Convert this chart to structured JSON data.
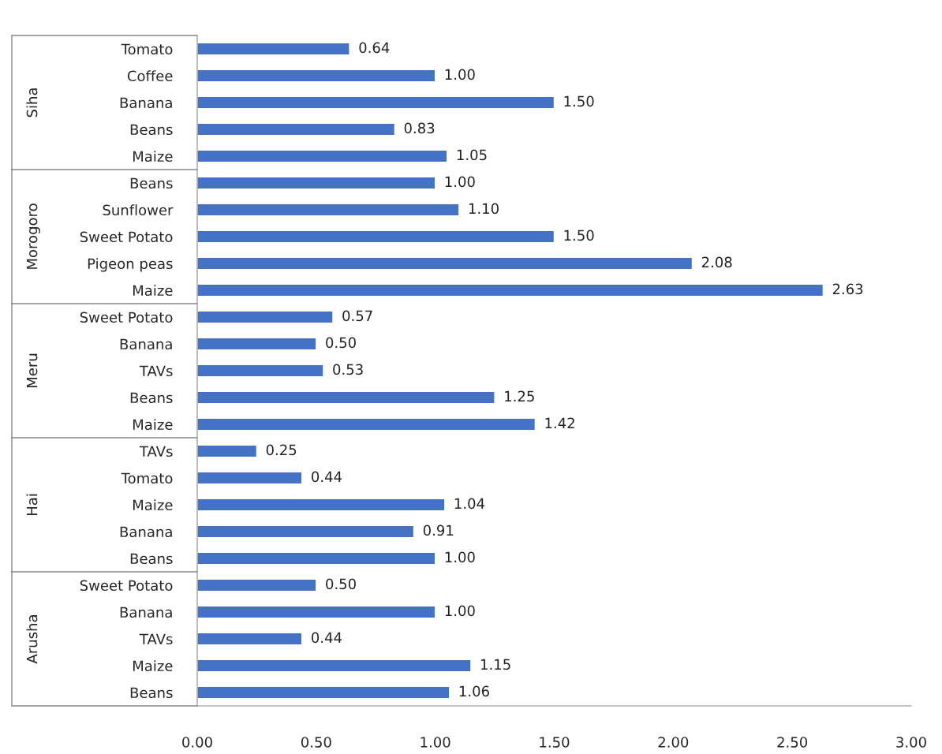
{
  "chart_data": {
    "type": "bar",
    "orientation": "horizontal",
    "categories": [
      "Tomato",
      "Coffee",
      "Banana",
      "Beans",
      "Maize",
      "Beans",
      "Sunflower",
      "Sweet Potato",
      "Pigeon peas",
      "Maize",
      "Sweet Potato",
      "Banana",
      "TAVs",
      "Beans",
      "Maize",
      "TAVs",
      "Tomato",
      "Maize",
      "Banana",
      "Beans",
      "Sweet Potato",
      "Banana",
      "TAVs",
      "Maize",
      "Beans"
    ],
    "values": [
      0.64,
      1.0,
      1.5,
      0.83,
      1.05,
      1.0,
      1.1,
      1.5,
      2.08,
      2.63,
      0.57,
      0.5,
      0.53,
      1.25,
      1.42,
      0.25,
      0.44,
      1.04,
      0.91,
      1.0,
      0.5,
      1.0,
      0.44,
      1.15,
      1.06
    ],
    "value_labels": [
      "0.64",
      "1.00",
      "1.50",
      "0.83",
      "1.05",
      "1.00",
      "1.10",
      "1.50",
      "2.08",
      "2.63",
      "0.57",
      "0.50",
      "0.53",
      "1.25",
      "1.42",
      "0.25",
      "0.44",
      "1.04",
      "0.91",
      "1.00",
      "0.50",
      "1.00",
      "0.44",
      "1.15",
      "1.06"
    ],
    "color": "#4472c4",
    "annotations": [
      "Siha",
      "Morogoro",
      "Meru",
      "Hai",
      "Arusha"
    ],
    "xlim": [
      0,
      3
    ],
    "xticks": [
      {
        "value": 0,
        "label": "0.00"
      },
      {
        "value": 0.5,
        "label": "0.50"
      },
      {
        "value": 1,
        "label": "1.00"
      },
      {
        "value": 1.5,
        "label": "1.50"
      },
      {
        "value": 2,
        "label": "2.00"
      },
      {
        "value": 2.5,
        "label": "2.50"
      },
      {
        "value": 3,
        "label": "3.00"
      }
    ],
    "grid": false
  }
}
